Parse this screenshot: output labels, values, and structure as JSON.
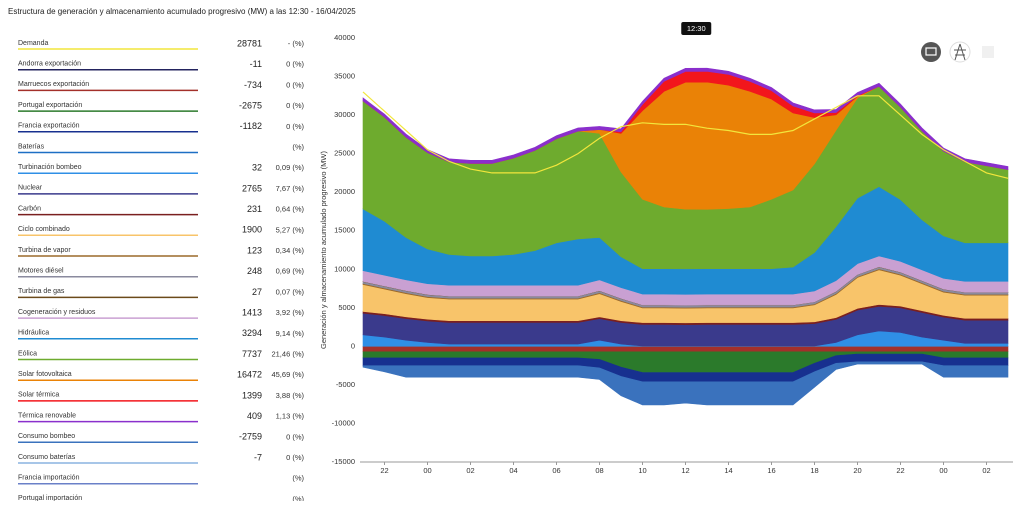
{
  "page_title": "Estructura de generación y almacenamiento acumulado progresivo (MW) a las 12:30 - 16/04/2025",
  "chart_data": {
    "type": "stacked-area",
    "y_label": "Generación y almacenamiento acumulado progresivo (MW)",
    "cursor_label": "12:30",
    "grid": false,
    "ylim": [
      -15000,
      40000
    ],
    "yticks": [
      -15000,
      -10000,
      -5000,
      0,
      5000,
      10000,
      15000,
      20000,
      25000,
      30000,
      35000,
      40000
    ],
    "categories": [
      null,
      "22",
      null,
      "00",
      null,
      "02",
      null,
      "04",
      null,
      "06",
      null,
      "08",
      null,
      "10",
      null,
      "12",
      null,
      "14",
      null,
      "16",
      null,
      "18",
      null,
      "20",
      null,
      "22",
      null,
      "00",
      null,
      "02",
      null
    ],
    "series": [
      {
        "name": "Demanda",
        "color": "#f2e63c",
        "value": 28781,
        "share": "- (%)",
        "kind": "line",
        "values": [
          33000,
          30500,
          28000,
          25500,
          24000,
          23000,
          22500,
          22500,
          22500,
          23500,
          25000,
          27000,
          28500,
          29000,
          28800,
          28800,
          28300,
          28000,
          27500,
          27500,
          28000,
          29500,
          31000,
          32500,
          32500,
          30000,
          27500,
          25500,
          24000,
          22500,
          21800
        ]
      },
      {
        "name": "Andorra exportación",
        "color": "#23235e",
        "value": -11,
        "share": "0 (%)"
      },
      {
        "name": "Marruecos exportación",
        "color": "#a3302a",
        "value": -734,
        "share": "0 (%)",
        "values": [
          -700,
          -700,
          -700,
          -700,
          -700,
          -700,
          -700,
          -700,
          -700,
          -700,
          -700,
          -700,
          -700,
          -700,
          -700,
          -700,
          -700,
          -700,
          -700,
          -700,
          -700,
          -700,
          -700,
          -700,
          -700,
          -700,
          -700,
          -700,
          -700,
          -700,
          -700
        ]
      },
      {
        "name": "Portugal exportación",
        "color": "#2b7a2b",
        "value": -2675,
        "share": "0 (%)",
        "values": [
          -800,
          -800,
          -800,
          -800,
          -800,
          -800,
          -800,
          -800,
          -800,
          -800,
          -800,
          -1000,
          -2000,
          -2700,
          -2700,
          -2700,
          -2700,
          -2700,
          -2700,
          -2700,
          -2700,
          -1500,
          -500,
          -300,
          -300,
          -300,
          -300,
          -800,
          -800,
          -800,
          -800
        ]
      },
      {
        "name": "Francia exportación",
        "color": "#17308f",
        "value": -1182,
        "share": "0 (%)",
        "values": [
          -1000,
          -1000,
          -1000,
          -1000,
          -1000,
          -1000,
          -1000,
          -1000,
          -1000,
          -1000,
          -1000,
          -1100,
          -1200,
          -1200,
          -1200,
          -1200,
          -1200,
          -1200,
          -1200,
          -1200,
          -1200,
          -1100,
          -1000,
          -1000,
          -1000,
          -1000,
          -1000,
          -1000,
          -1000,
          -1000,
          -1000
        ]
      },
      {
        "name": "Baterías",
        "color": "#1d6fc4",
        "share": "(%)"
      },
      {
        "name": "Turbinación bombeo",
        "color": "#2f8fe6",
        "value": 32,
        "share": "0,09 (%)",
        "values": [
          1500,
          1200,
          800,
          500,
          300,
          300,
          300,
          300,
          300,
          300,
          300,
          800,
          300,
          50,
          50,
          50,
          50,
          50,
          50,
          50,
          50,
          50,
          500,
          1500,
          2000,
          1800,
          1200,
          800,
          400,
          400,
          400
        ]
      },
      {
        "name": "Nuclear",
        "color": "#3a3a8c",
        "value": 2765,
        "share": "7,67 (%)",
        "values": [
          2800,
          2800,
          2800,
          2800,
          2800,
          2800,
          2800,
          2800,
          2800,
          2800,
          2800,
          2800,
          2800,
          2800,
          2800,
          2765,
          2800,
          2800,
          2800,
          2800,
          2800,
          2900,
          3000,
          3200,
          3200,
          3200,
          3200,
          3000,
          3000,
          3000,
          3000
        ]
      },
      {
        "name": "Carbón",
        "color": "#7a1f1f",
        "value": 231,
        "share": "0,64 (%)",
        "values": [
          231,
          231,
          231,
          231,
          231,
          231,
          231,
          231,
          231,
          231,
          231,
          231,
          231,
          231,
          231,
          231,
          231,
          231,
          231,
          231,
          231,
          231,
          231,
          231,
          231,
          231,
          231,
          231,
          231,
          231,
          231
        ]
      },
      {
        "name": "Ciclo combinado",
        "color": "#f8c46a",
        "value": 1900,
        "share": "5,27 (%)",
        "values": [
          3500,
          3200,
          3000,
          2800,
          2800,
          2800,
          2800,
          2800,
          2800,
          2800,
          2800,
          3000,
          2500,
          1900,
          1900,
          1900,
          1900,
          1900,
          1900,
          1900,
          1900,
          2200,
          3000,
          4000,
          4500,
          4000,
          3500,
          3000,
          3000,
          3000,
          3000
        ]
      },
      {
        "name": "Turbina de vapor",
        "color": "#9c6a2a",
        "value": 123,
        "share": "0,34 (%)",
        "values": [
          123,
          123,
          123,
          123,
          123,
          123,
          123,
          123,
          123,
          123,
          123,
          123,
          123,
          123,
          123,
          123,
          123,
          123,
          123,
          123,
          123,
          123,
          123,
          123,
          123,
          123,
          123,
          123,
          123,
          123,
          123
        ]
      },
      {
        "name": "Motores diésel",
        "color": "#8a8a9e",
        "value": 248,
        "share": "0,69 (%)",
        "values": [
          248,
          248,
          248,
          248,
          248,
          248,
          248,
          248,
          248,
          248,
          248,
          248,
          248,
          248,
          248,
          248,
          248,
          248,
          248,
          248,
          248,
          248,
          248,
          248,
          248,
          248,
          248,
          248,
          248,
          248,
          248
        ]
      },
      {
        "name": "Turbina de gas",
        "color": "#6b4a1a",
        "value": 27,
        "share": "0,07 (%)",
        "values": [
          27,
          27,
          27,
          27,
          27,
          27,
          27,
          27,
          27,
          27,
          27,
          27,
          27,
          27,
          27,
          27,
          27,
          27,
          27,
          27,
          27,
          27,
          27,
          27,
          27,
          27,
          27,
          27,
          27,
          27,
          27
        ]
      },
      {
        "name": "Cogeneración y residuos",
        "color": "#c9a0d2",
        "value": 1413,
        "share": "3,92 (%)",
        "values": [
          1400,
          1400,
          1400,
          1400,
          1400,
          1400,
          1400,
          1400,
          1400,
          1400,
          1400,
          1400,
          1400,
          1400,
          1400,
          1413,
          1400,
          1400,
          1400,
          1400,
          1400,
          1400,
          1400,
          1400,
          1400,
          1400,
          1400,
          1400,
          1400,
          1400,
          1400
        ]
      },
      {
        "name": "Hidráulica",
        "color": "#1f8bd2",
        "value": 3294,
        "share": "9,14 (%)",
        "values": [
          8000,
          7000,
          5500,
          4500,
          4000,
          3800,
          3800,
          4000,
          4500,
          5500,
          6000,
          5500,
          4000,
          3300,
          3300,
          3294,
          3300,
          3300,
          3300,
          3300,
          3500,
          5000,
          7000,
          8500,
          9000,
          8000,
          6500,
          5500,
          5000,
          5000,
          5000
        ]
      },
      {
        "name": "Eólica",
        "color": "#6eab2e",
        "value": 7737,
        "share": "21,46 (%)",
        "values": [
          14000,
          13500,
          13000,
          12500,
          12000,
          12000,
          12000,
          12500,
          13000,
          13500,
          14000,
          13500,
          11000,
          9000,
          8000,
          7737,
          7700,
          7800,
          8000,
          9000,
          10000,
          11500,
          12500,
          13000,
          13000,
          12000,
          11500,
          11000,
          10500,
          10000,
          9500
        ]
      },
      {
        "name": "Solar fotovoltaica",
        "color": "#ea8206",
        "value": 16472,
        "share": "45,69 (%)",
        "values": [
          0,
          0,
          0,
          0,
          0,
          0,
          0,
          0,
          0,
          0,
          0,
          500,
          5000,
          11500,
          15000,
          16472,
          16500,
          16000,
          15000,
          13000,
          10000,
          6000,
          2000,
          200,
          0,
          0,
          0,
          0,
          0,
          0,
          0
        ]
      },
      {
        "name": "Solar térmica",
        "color": "#f2161c",
        "value": 1399,
        "share": "3,88 (%)",
        "values": [
          0,
          0,
          0,
          0,
          0,
          0,
          0,
          0,
          0,
          0,
          0,
          0,
          200,
          800,
          1300,
          1399,
          1400,
          1400,
          1300,
          1100,
          900,
          600,
          300,
          100,
          0,
          0,
          0,
          0,
          0,
          0,
          0
        ]
      },
      {
        "name": "Térmica renovable",
        "color": "#8a2fcc",
        "value": 409,
        "share": "1,13 (%)",
        "values": [
          400,
          400,
          400,
          400,
          400,
          400,
          400,
          400,
          400,
          400,
          400,
          400,
          400,
          400,
          400,
          409,
          400,
          400,
          400,
          400,
          400,
          400,
          400,
          400,
          400,
          400,
          400,
          400,
          400,
          400,
          400
        ]
      },
      {
        "name": "Consumo bombeo",
        "color": "#3a72bd",
        "value": -2759,
        "share": "0 (%)",
        "values": [
          -200,
          -800,
          -1500,
          -1500,
          -1500,
          -1500,
          -1500,
          -1500,
          -1500,
          -1500,
          -1500,
          -1500,
          -2500,
          -3000,
          -3000,
          -2759,
          -3000,
          -3000,
          -3000,
          -3000,
          -3000,
          -2000,
          -800,
          -300,
          -300,
          -300,
          -300,
          -1500,
          -1500,
          -1500,
          -1500
        ]
      },
      {
        "name": "Consumo baterías",
        "color": "#8ab4e0",
        "value": -7,
        "share": "0 (%)"
      },
      {
        "name": "Francia importación",
        "color": "#6a80c8",
        "share": "(%)"
      },
      {
        "name": "Portugal importación",
        "color": "#4a9a4a",
        "share": "(%)"
      }
    ]
  }
}
